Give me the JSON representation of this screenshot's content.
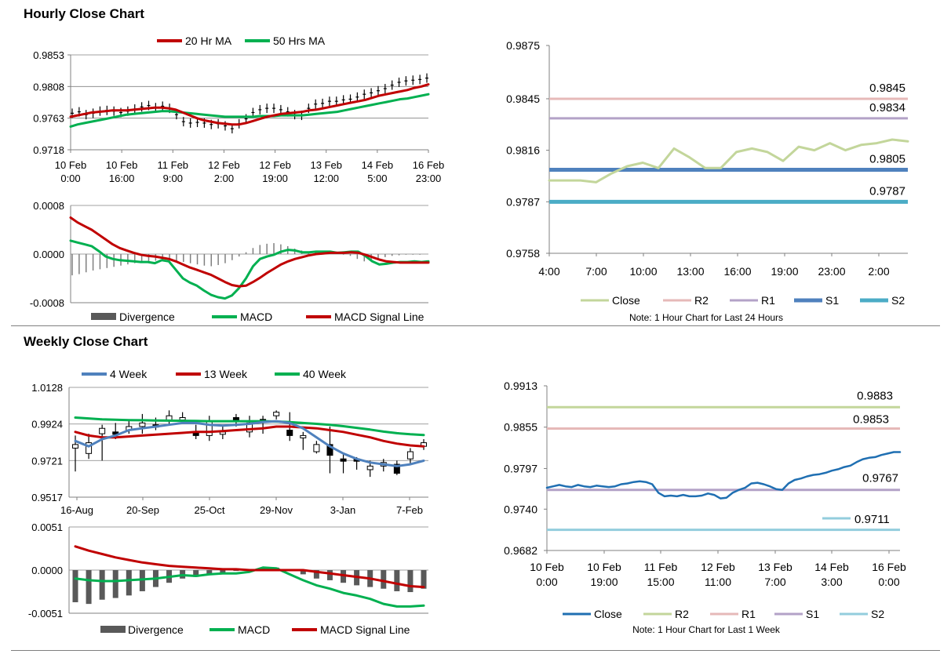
{
  "hourly": {
    "title": "Hourly Close Chart",
    "price_chart": {
      "type": "line",
      "legend": [
        "20 Hr MA",
        "50 Hrs MA"
      ],
      "y_ticks": [
        "0.9853",
        "0.9808",
        "0.9763",
        "0.9718"
      ],
      "ylim": [
        0.9718,
        0.9853
      ],
      "x_ticks": [
        [
          "10 Feb",
          "0:00"
        ],
        [
          "10 Feb",
          "16:00"
        ],
        [
          "11 Feb",
          "9:00"
        ],
        [
          "12 Feb",
          "2:00"
        ],
        [
          "12 Feb",
          "19:00"
        ],
        [
          "13 Feb",
          "12:00"
        ],
        [
          "14 Feb",
          "5:00"
        ],
        [
          "16 Feb",
          "23:00"
        ]
      ],
      "series": [
        {
          "name": "Close",
          "color": "#000000",
          "values": [
            0.977,
            0.9772,
            0.9768,
            0.977,
            0.9773,
            0.9774,
            0.9773,
            0.9771,
            0.9773,
            0.9776,
            0.9779,
            0.9781,
            0.9778,
            0.978,
            0.9777,
            0.9768,
            0.9758,
            0.9756,
            0.9757,
            0.9756,
            0.9754,
            0.9755,
            0.9752,
            0.9748,
            0.9755,
            0.9762,
            0.9771,
            0.9775,
            0.9777,
            0.9777,
            0.9775,
            0.9772,
            0.9768,
            0.9767,
            0.9777,
            0.9783,
            0.9784,
            0.9787,
            0.9787,
            0.9789,
            0.979,
            0.9793,
            0.9797,
            0.9799,
            0.9802,
            0.9805,
            0.981,
            0.9814,
            0.9816,
            0.9817,
            0.9818,
            0.982
          ]
        },
        {
          "name": "20 Hr MA",
          "color": "#c00000",
          "values": [
            0.9765,
            0.9767,
            0.9769,
            0.9771,
            0.9772,
            0.9773,
            0.9774,
            0.9774,
            0.9774,
            0.9775,
            0.9776,
            0.9777,
            0.9778,
            0.9778,
            0.9777,
            0.9775,
            0.9771,
            0.9767,
            0.9763,
            0.976,
            0.9758,
            0.9756,
            0.9755,
            0.9754,
            0.9754,
            0.9756,
            0.9759,
            0.9762,
            0.9765,
            0.9767,
            0.9769,
            0.977,
            0.9771,
            0.9772,
            0.9774,
            0.9775,
            0.9777,
            0.9779,
            0.9781,
            0.9783,
            0.9785,
            0.9787,
            0.9789,
            0.9792,
            0.9795,
            0.9797,
            0.9799,
            0.9801,
            0.9803,
            0.9806,
            0.9808,
            0.9811
          ]
        },
        {
          "name": "50 Hrs MA",
          "color": "#00b050",
          "values": [
            0.9751,
            0.9754,
            0.9756,
            0.9758,
            0.976,
            0.9762,
            0.9764,
            0.9766,
            0.9768,
            0.9769,
            0.977,
            0.9771,
            0.9772,
            0.9773,
            0.9773,
            0.9772,
            0.9771,
            0.977,
            0.9769,
            0.9768,
            0.9767,
            0.9766,
            0.9765,
            0.9765,
            0.9765,
            0.9765,
            0.9765,
            0.9766,
            0.9766,
            0.9766,
            0.9767,
            0.9767,
            0.9767,
            0.9767,
            0.9768,
            0.9769,
            0.977,
            0.9771,
            0.9772,
            0.9774,
            0.9776,
            0.9778,
            0.978,
            0.9782,
            0.9784,
            0.9786,
            0.9788,
            0.979,
            0.9791,
            0.9793,
            0.9795,
            0.9797
          ]
        }
      ]
    },
    "macd_chart": {
      "type": "line",
      "legend": [
        "Divergence",
        "MACD",
        "MACD Signal Line"
      ],
      "y_ticks": [
        "0.0008",
        "0.0000",
        "-0.0008"
      ],
      "ylim": [
        -0.0008,
        0.0008
      ],
      "series": [
        {
          "name": "Divergence",
          "color": "#7f7f7f",
          "values": [
            -0.00035,
            -0.00033,
            -0.0003,
            -0.00027,
            -0.00025,
            -0.00023,
            -0.00021,
            -0.00019,
            -0.00017,
            -0.00015,
            -0.00013,
            -0.00012,
            -0.00011,
            -0.0001,
            -0.0001,
            -0.00011,
            -0.00013,
            -0.00015,
            -0.00017,
            -0.00019,
            -0.0002,
            -0.00018,
            -0.00015,
            -0.0001,
            -4e-05,
            3e-05,
            0.0001,
            0.00015,
            0.00017,
            0.00018,
            0.00016,
            0.00013,
            9e-05,
            6e-05,
            4e-05,
            3e-05,
            2e-05,
            1e-05,
            0.0,
            -1e-05,
            -3e-05,
            -8e-05,
            -0.00012,
            -0.0001,
            -7e-05,
            -5e-05,
            -3e-05,
            -2e-05,
            -1e-05,
            -1e-05,
            -1e-05,
            0.0
          ]
        },
        {
          "name": "MACD",
          "color": "#00b050",
          "values": [
            0.00022,
            0.00019,
            0.00016,
            0.00013,
            5e-05,
            -4e-05,
            -8e-05,
            -0.0001,
            -0.00011,
            -0.00012,
            -0.00013,
            -0.00013,
            -0.00015,
            -0.0001,
            -0.00012,
            -0.00026,
            -0.0004,
            -0.00047,
            -0.00052,
            -0.0006,
            -0.00067,
            -0.00071,
            -0.00073,
            -0.00068,
            -0.00056,
            -0.0004,
            -0.0002,
            -8e-05,
            -4e-05,
            -1e-05,
            4e-05,
            7e-05,
            6e-05,
            3e-05,
            3e-05,
            4e-05,
            4e-05,
            4e-05,
            2e-05,
            3e-05,
            4e-05,
            4e-05,
            -3e-05,
            -0.00012,
            -0.00017,
            -0.00016,
            -0.00014,
            -0.00013,
            -0.00013,
            -0.00012,
            -0.00013,
            -0.00012
          ]
        },
        {
          "name": "MACD Signal Line",
          "color": "#c00000",
          "values": [
            0.0006,
            0.00052,
            0.00046,
            0.0004,
            0.00032,
            0.00024,
            0.00016,
            0.0001,
            6e-05,
            2e-05,
            -1e-05,
            -3e-05,
            -4e-05,
            -6e-05,
            -8e-05,
            -0.00012,
            -0.00017,
            -0.00022,
            -0.00026,
            -0.0003,
            -0.00034,
            -0.0004,
            -0.00046,
            -0.00051,
            -0.00053,
            -0.00052,
            -0.00046,
            -0.00039,
            -0.00031,
            -0.00024,
            -0.00017,
            -0.00012,
            -8e-05,
            -5e-05,
            -2e-05,
            0.0,
            1e-05,
            2e-05,
            2e-05,
            2e-05,
            3e-05,
            2e-05,
            -1e-05,
            -5e-05,
            -9e-05,
            -0.00012,
            -0.00013,
            -0.00014,
            -0.00014,
            -0.00014,
            -0.00014,
            -0.00014
          ]
        }
      ]
    },
    "levels_chart": {
      "type": "line",
      "legend": [
        "Close",
        "R2",
        "R1",
        "S1",
        "S2"
      ],
      "note": "Note: 1 Hour Chart for Last 24 Hours",
      "y_ticks": [
        "0.9875",
        "0.9845",
        "0.9816",
        "0.9787",
        "0.9758"
      ],
      "ylim": [
        0.9758,
        0.9875
      ],
      "x_ticks": [
        "4:00",
        "7:00",
        "10:00",
        "13:00",
        "16:00",
        "19:00",
        "23:00",
        "2:00"
      ],
      "levels": [
        {
          "name": "R2",
          "value": 0.9845,
          "label": "0.9845",
          "color": "#e6b9b8"
        },
        {
          "name": "R1",
          "value": 0.9834,
          "label": "0.9834",
          "color": "#b3a2c7"
        },
        {
          "name": "S1",
          "value": 0.9805,
          "label": "0.9805",
          "color": "#4f81bd"
        },
        {
          "name": "S2",
          "value": 0.9787,
          "label": "0.9787",
          "color": "#4bacc6"
        }
      ],
      "close": {
        "name": "Close",
        "color": "#c3d69b",
        "values": [
          0.9799,
          0.9799,
          0.9799,
          0.9798,
          0.9803,
          0.9807,
          0.9809,
          0.9806,
          0.9817,
          0.9812,
          0.9806,
          0.9806,
          0.9815,
          0.9817,
          0.9815,
          0.981,
          0.9818,
          0.9816,
          0.982,
          0.9816,
          0.9819,
          0.982,
          0.9822,
          0.9821
        ]
      }
    }
  },
  "weekly": {
    "title": "Weekly Close Chart",
    "price_chart": {
      "type": "line",
      "legend": [
        "4 Week",
        "13 Week",
        "40 Week"
      ],
      "y_ticks": [
        "1.0128",
        "0.9924",
        "0.9721",
        "0.9517"
      ],
      "ylim": [
        0.9517,
        1.0128
      ],
      "x_ticks": [
        "16-Aug",
        "20-Sep",
        "25-Oct",
        "29-Nov",
        "3-Jan",
        "7-Feb"
      ],
      "candles": [
        {
          "o": 0.979,
          "c": 0.981,
          "h": 0.986,
          "l": 0.966
        },
        {
          "o": 0.976,
          "c": 0.982,
          "h": 0.987,
          "l": 0.973
        },
        {
          "o": 0.987,
          "c": 0.99,
          "h": 0.992,
          "l": 0.972
        },
        {
          "o": 0.988,
          "c": 0.987,
          "h": 0.993,
          "l": 0.984
        },
        {
          "o": 0.989,
          "c": 0.991,
          "h": 0.995,
          "l": 0.987
        },
        {
          "o": 0.991,
          "c": 0.993,
          "h": 0.998,
          "l": 0.987
        },
        {
          "o": 0.992,
          "c": 0.991,
          "h": 0.996,
          "l": 0.989
        },
        {
          "o": 0.994,
          "c": 0.997,
          "h": 1.0,
          "l": 0.992
        },
        {
          "o": 0.995,
          "c": 0.996,
          "h": 0.999,
          "l": 0.993
        },
        {
          "o": 0.988,
          "c": 0.986,
          "h": 0.992,
          "l": 0.984
        },
        {
          "o": 0.986,
          "c": 0.994,
          "h": 0.997,
          "l": 0.983
        },
        {
          "o": 0.987,
          "c": 0.988,
          "h": 0.991,
          "l": 0.984
        },
        {
          "o": 0.996,
          "c": 0.994,
          "h": 0.998,
          "l": 0.991
        },
        {
          "o": 0.988,
          "c": 0.993,
          "h": 0.997,
          "l": 0.985
        },
        {
          "o": 0.995,
          "c": 0.994,
          "h": 0.997,
          "l": 0.987
        },
        {
          "o": 0.997,
          "c": 0.999,
          "h": 1.0,
          "l": 0.995
        },
        {
          "o": 0.989,
          "c": 0.986,
          "h": 0.999,
          "l": 0.983
        },
        {
          "o": 0.985,
          "c": 0.986,
          "h": 0.988,
          "l": 0.978
        },
        {
          "o": 0.977,
          "c": 0.981,
          "h": 0.983,
          "l": 0.976
        },
        {
          "o": 0.981,
          "c": 0.975,
          "h": 0.991,
          "l": 0.965
        },
        {
          "o": 0.973,
          "c": 0.972,
          "h": 0.976,
          "l": 0.965
        },
        {
          "o": 0.973,
          "c": 0.972,
          "h": 0.974,
          "l": 0.967
        },
        {
          "o": 0.967,
          "c": 0.969,
          "h": 0.972,
          "l": 0.963
        },
        {
          "o": 0.969,
          "c": 0.971,
          "h": 0.973,
          "l": 0.966
        },
        {
          "o": 0.97,
          "c": 0.965,
          "h": 0.972,
          "l": 0.964
        },
        {
          "o": 0.973,
          "c": 0.977,
          "h": 0.979,
          "l": 0.97
        },
        {
          "o": 0.98,
          "c": 0.982,
          "h": 0.984,
          "l": 0.978
        }
      ],
      "series": [
        {
          "name": "4 Week",
          "color": "#4f81bd",
          "values": [
            0.983,
            0.98,
            0.984,
            0.986,
            0.989,
            0.99,
            0.991,
            0.992,
            0.993,
            0.993,
            0.992,
            0.9915,
            0.992,
            0.9925,
            0.9935,
            0.994,
            0.993,
            0.99,
            0.985,
            0.98,
            0.976,
            0.973,
            0.971,
            0.97,
            0.969,
            0.97,
            0.972
          ]
        },
        {
          "name": "13 Week",
          "color": "#c00000",
          "values": [
            0.988,
            0.986,
            0.985,
            0.985,
            0.9855,
            0.986,
            0.9865,
            0.987,
            0.9875,
            0.988,
            0.988,
            0.9885,
            0.989,
            0.9895,
            0.99,
            0.991,
            0.991,
            0.9905,
            0.99,
            0.989,
            0.988,
            0.9865,
            0.985,
            0.983,
            0.9815,
            0.9805,
            0.98
          ]
        },
        {
          "name": "40 Week",
          "color": "#00b050",
          "values": [
            0.996,
            0.9955,
            0.995,
            0.9948,
            0.9946,
            0.9945,
            0.9944,
            0.9943,
            0.9942,
            0.9941,
            0.994,
            0.994,
            0.994,
            0.994,
            0.994,
            0.9938,
            0.9935,
            0.993,
            0.9925,
            0.992,
            0.9912,
            0.9903,
            0.9893,
            0.9882,
            0.9873,
            0.9867,
            0.9863
          ]
        }
      ]
    },
    "macd_chart": {
      "type": "line",
      "legend": [
        "Divergence",
        "MACD",
        "MACD Signal Line"
      ],
      "y_ticks": [
        "0.0051",
        "0.0000",
        "-0.0051"
      ],
      "ylim": [
        -0.0051,
        0.0051
      ],
      "series": [
        {
          "name": "Divergence",
          "color": "#7f7f7f",
          "values": [
            -0.0038,
            -0.004,
            -0.0035,
            -0.0033,
            -0.003,
            -0.0025,
            -0.002,
            -0.0015,
            -0.001,
            -0.0008,
            -0.0005,
            -0.0003,
            -0.0001,
            0.0,
            0.0002,
            0.0003,
            0.0,
            -0.0005,
            -0.001,
            -0.0012,
            -0.0015,
            -0.0018,
            -0.002,
            -0.0022,
            -0.0025,
            -0.0026,
            -0.0022
          ]
        },
        {
          "name": "MACD",
          "color": "#00b050",
          "values": [
            -0.001,
            -0.0012,
            -0.0013,
            -0.0013,
            -0.0012,
            -0.0011,
            -0.001,
            -0.0008,
            -0.0006,
            -0.0007,
            -0.0005,
            -0.0004,
            -0.0004,
            -0.0002,
            0.0003,
            0.0002,
            -0.0005,
            -0.0012,
            -0.0018,
            -0.0022,
            -0.0027,
            -0.003,
            -0.0034,
            -0.004,
            -0.0043,
            -0.0043,
            -0.0042
          ]
        },
        {
          "name": "MACD Signal Line",
          "color": "#c00000",
          "values": [
            0.0028,
            0.0023,
            0.0019,
            0.0015,
            0.0012,
            0.0009,
            0.0007,
            0.0005,
            0.0004,
            0.0003,
            0.0002,
            0.0001,
            0.0001,
            0.0,
            0.0,
            0.0,
            0.0,
            0.0,
            -0.0002,
            -0.0004,
            -0.0006,
            -0.0008,
            -0.001,
            -0.0013,
            -0.0016,
            -0.0019,
            -0.002
          ]
        }
      ]
    },
    "levels_chart": {
      "type": "line",
      "legend": [
        "Close",
        "R2",
        "R1",
        "S1",
        "S2"
      ],
      "note": "Note: 1 Hour Chart for Last 1 Week",
      "y_ticks": [
        "0.9913",
        "0.9855",
        "0.9797",
        "0.9740",
        "0.9682"
      ],
      "ylim": [
        0.9682,
        0.9913
      ],
      "x_ticks": [
        [
          "10 Feb",
          "0:00"
        ],
        [
          "10 Feb",
          "19:00"
        ],
        [
          "11 Feb",
          "15:00"
        ],
        [
          "12 Feb",
          "11:00"
        ],
        [
          "13 Feb",
          "7:00"
        ],
        [
          "14 Feb",
          "3:00"
        ],
        [
          "16 Feb",
          "0:00"
        ]
      ],
      "levels": [
        {
          "name": "R2",
          "value": 0.9883,
          "label": "0.9883",
          "color": "#c3d69b"
        },
        {
          "name": "R1",
          "value": 0.9853,
          "label": "0.9853",
          "color": "#e6b9b8"
        },
        {
          "name": "S1",
          "value": 0.9767,
          "label": "0.9767",
          "color": "#b3a2c7"
        },
        {
          "name": "S2",
          "value": 0.9711,
          "label": "0.9711",
          "color": "#93cddd"
        }
      ],
      "close": {
        "name": "Close",
        "color": "#1f6fb2",
        "values": [
          0.977,
          0.9772,
          0.9774,
          0.9772,
          0.9771,
          0.9774,
          0.9772,
          0.9771,
          0.9773,
          0.9772,
          0.9771,
          0.9772,
          0.9775,
          0.9776,
          0.9778,
          0.9779,
          0.9778,
          0.9775,
          0.9763,
          0.9758,
          0.9759,
          0.9758,
          0.976,
          0.9758,
          0.9758,
          0.9759,
          0.9762,
          0.976,
          0.9755,
          0.9756,
          0.9763,
          0.9767,
          0.977,
          0.9776,
          0.9777,
          0.9775,
          0.9772,
          0.9768,
          0.9767,
          0.9776,
          0.9781,
          0.9783,
          0.9786,
          0.9788,
          0.9789,
          0.9791,
          0.9794,
          0.9796,
          0.9799,
          0.9801,
          0.9806,
          0.981,
          0.9812,
          0.9813,
          0.9816,
          0.9818,
          0.982,
          0.982
        ]
      }
    }
  }
}
